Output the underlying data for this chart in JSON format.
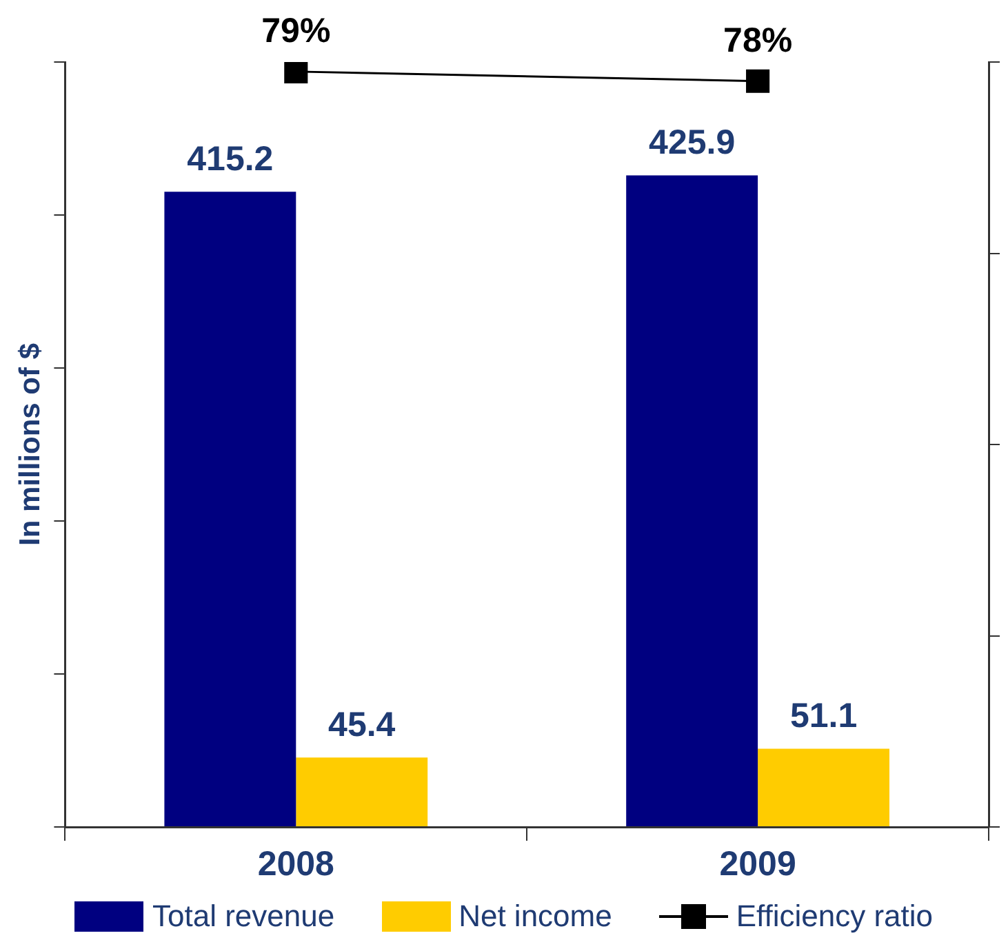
{
  "chart_data": {
    "type": "bar",
    "ylabel": "In millions of $",
    "categories": [
      "2008",
      "2009"
    ],
    "series": [
      {
        "name": "Total revenue",
        "color": "#000080",
        "values": [
          415.2,
          425.9
        ],
        "value_labels": [
          "415.2",
          "425.9"
        ]
      },
      {
        "name": "Net income",
        "color": "#ffcc00",
        "values": [
          45.4,
          51.1
        ],
        "value_labels": [
          "45.4",
          "51.1"
        ]
      },
      {
        "name": "Efficiency ratio",
        "type": "line",
        "axis": "y2",
        "color": "#000000",
        "values": [
          79,
          78
        ],
        "value_labels": [
          "79%",
          "78%"
        ],
        "marker": "square"
      }
    ],
    "ylim": [
      0,
      500
    ],
    "yticks": [
      {
        "value": 0,
        "label": null
      },
      {
        "value": 100,
        "label": null
      },
      {
        "value": 200,
        "label": null
      },
      {
        "value": 300,
        "label": null
      },
      {
        "value": 400,
        "label": null
      },
      {
        "value": 500,
        "label": null
      }
    ],
    "y2lim": [
      0,
      80
    ],
    "y2ticks": [
      {
        "value": 0,
        "label": null
      },
      {
        "value": 20,
        "label": null
      },
      {
        "value": 40,
        "label": null
      },
      {
        "value": 60,
        "label": null
      },
      {
        "value": 80,
        "label": null
      }
    ],
    "tick_labels": "x",
    "grid": false,
    "legend": "bottom"
  }
}
